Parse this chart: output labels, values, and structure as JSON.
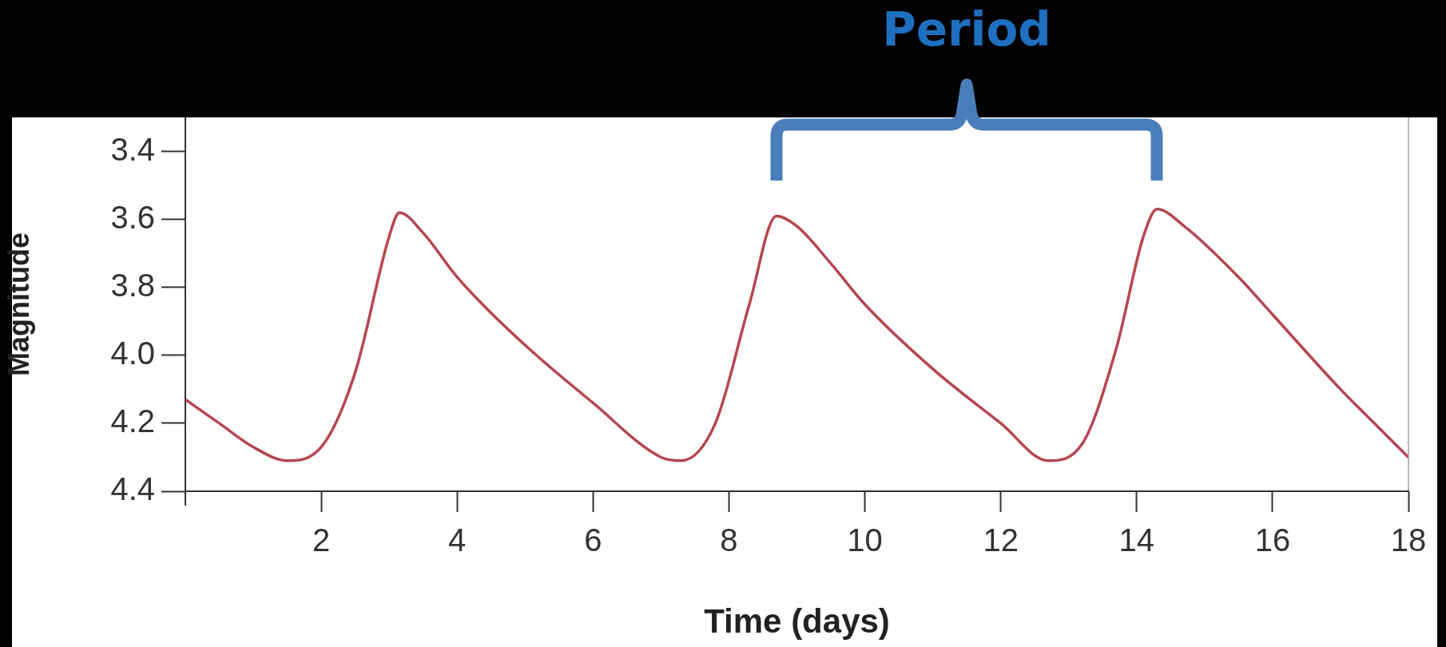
{
  "chart_data": {
    "type": "line",
    "xlabel": "Time (days)",
    "ylabel": "Magnitude",
    "annotations": [
      "Period"
    ],
    "xlim": [
      0,
      18
    ],
    "ylim": [
      4.4,
      3.3
    ],
    "xticks": [
      {
        "value": 0,
        "label": null
      },
      2,
      4,
      6,
      8,
      10,
      12,
      14,
      16,
      18
    ],
    "yticks": [
      3.4,
      3.6,
      3.8,
      {
        "value": 4.0,
        "label": "4.0"
      },
      4.2,
      4.4
    ],
    "legend": false,
    "marker": "none",
    "grid": false,
    "series": [
      {
        "color": "#b5474f",
        "x": [
          0,
          0.5,
          1,
          1.5,
          2,
          2.5,
          3,
          3.15,
          3.5,
          4,
          5,
          6,
          7,
          7.3,
          7.8,
          8.3,
          8.7,
          9,
          9.5,
          10,
          11,
          12,
          12.7,
          13.2,
          13.7,
          14.1,
          14.3,
          14.7,
          15.5,
          16,
          17,
          17.5,
          18
        ],
        "values": [
          4.13,
          4.2,
          4.27,
          4.31,
          4.27,
          4.05,
          3.65,
          3.58,
          3.64,
          3.77,
          3.97,
          4.14,
          4.3,
          4.31,
          4.2,
          3.85,
          3.59,
          3.62,
          3.73,
          3.85,
          4.04,
          4.2,
          4.31,
          4.26,
          3.98,
          3.65,
          3.57,
          3.62,
          3.77,
          3.88,
          4.1,
          4.2,
          4.3
        ]
      }
    ]
  }
}
